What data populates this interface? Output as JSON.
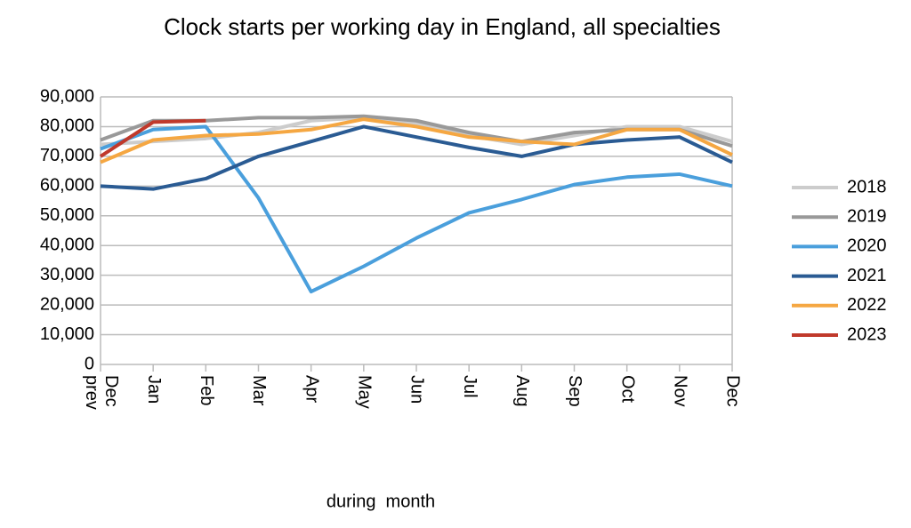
{
  "chart_data": {
    "type": "line",
    "title": "Clock starts per working day in England, all specialties",
    "x_label": "during  month",
    "categories": [
      "Dec prev",
      "Jan",
      "Feb",
      "Mar",
      "Apr",
      "May",
      "Jun",
      "Jul",
      "Aug",
      "Sep",
      "Oct",
      "Nov",
      "Dec"
    ],
    "series": [
      {
        "name": "2018",
        "color": "#cccccc",
        "values": [
          74000,
          75000,
          76000,
          78000,
          82000,
          83000,
          81000,
          77000,
          74000,
          77000,
          80000,
          80000,
          75000
        ]
      },
      {
        "name": "2019",
        "color": "#999999",
        "values": [
          75500,
          82000,
          82000,
          83000,
          83000,
          83500,
          82000,
          78000,
          75000,
          78000,
          79000,
          79000,
          73500
        ]
      },
      {
        "name": "2020",
        "color": "#4a9fdc",
        "values": [
          72500,
          79000,
          80000,
          56000,
          24500,
          33000,
          42500,
          51000,
          55500,
          60500,
          63000,
          64000,
          60000
        ]
      },
      {
        "name": "2021",
        "color": "#2a5b93",
        "values": [
          60000,
          59000,
          62500,
          70000,
          75000,
          80000,
          76500,
          73000,
          70000,
          74000,
          75500,
          76500,
          68000
        ]
      },
      {
        "name": "2022",
        "color": "#f5a742",
        "values": [
          68000,
          75500,
          77000,
          77500,
          79000,
          82500,
          80000,
          76500,
          75000,
          74000,
          79000,
          79000,
          70500
        ]
      },
      {
        "name": "2023",
        "color": "#c0392b",
        "values": [
          70000,
          81500,
          82000,
          null,
          null,
          null,
          null,
          null,
          null,
          null,
          null,
          null,
          null
        ]
      }
    ],
    "ylim": [
      0,
      90000
    ],
    "yticks": [
      0,
      {
        "value": 10000,
        "label": "10,000"
      },
      {
        "value": 20000,
        "label": "20,000"
      },
      {
        "value": 30000,
        "label": "30,000"
      },
      {
        "value": 40000,
        "label": "40,000"
      },
      {
        "value": 50000,
        "label": "50,000"
      },
      {
        "value": 60000,
        "label": "60,000"
      },
      {
        "value": 70000,
        "label": "70,000"
      },
      {
        "value": 80000,
        "label": "80,000"
      },
      {
        "value": 90000,
        "label": "90,000"
      }
    ],
    "grid": true,
    "legend": "right"
  }
}
